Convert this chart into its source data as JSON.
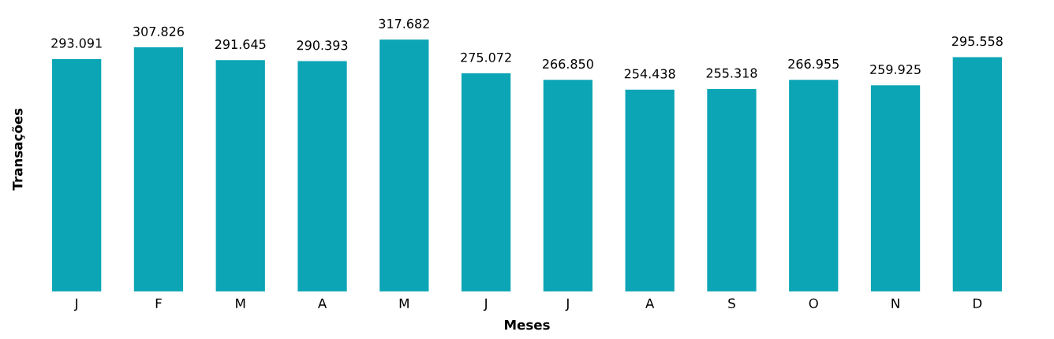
{
  "chart_data": {
    "type": "bar",
    "xlabel": "Meses",
    "ylabel": "Transações",
    "categories": [
      "J",
      "F",
      "M",
      "A",
      "M",
      "J",
      "J",
      "A",
      "S",
      "O",
      "N",
      "D"
    ],
    "values": [
      293091,
      307826,
      291645,
      290393,
      317682,
      275072,
      266850,
      254438,
      255318,
      266955,
      259925,
      295558
    ],
    "value_labels": [
      "293.091",
      "307.826",
      "291.645",
      "290.393",
      "317.682",
      "275.072",
      "266.850",
      "254.438",
      "255.318",
      "266.955",
      "259.925",
      "295.558"
    ],
    "color": "#0ba5b5",
    "grid": false,
    "legend": false
  }
}
